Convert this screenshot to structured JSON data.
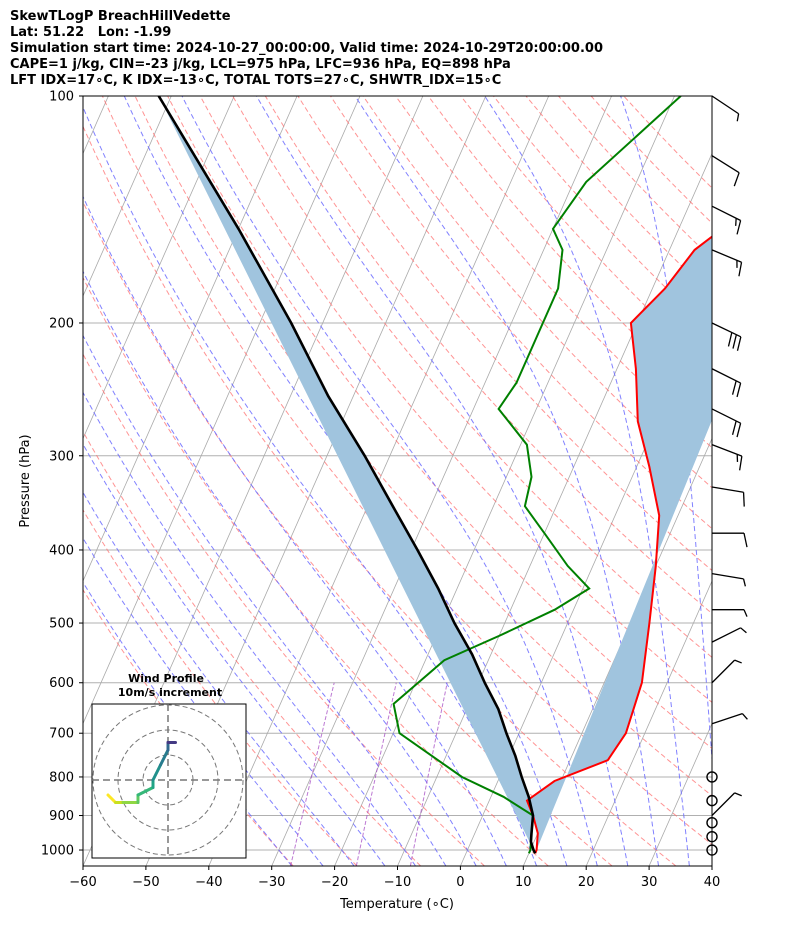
{
  "header": {
    "line1": "SkewTLogP BreachHillVedette",
    "line2": "Lat: 51.22   Lon: -1.99",
    "line3": "Simulation start time: 2024-10-27_00:00:00, Valid time: 2024-10-29T20:00:00.00",
    "line4": "CAPE=1 j/kg, CIN=-23 j/kg, LCL=975 hPa, LFC=936 hPa, EQ=898 hPa",
    "line5": "LFT IDX=17∘C, K IDX=-13∘C, TOTAL TOTS=27∘C, SHWTR_IDX=15∘C"
  },
  "chart_data": [
    {
      "type": "line",
      "subtype": "skew-t log-p",
      "xlabel": "Temperature (∘C)",
      "ylabel": "Pressure (hPa)",
      "xlim": [
        -60,
        40
      ],
      "ylim": [
        1050,
        100
      ],
      "yscale": "log",
      "x_ticks": [
        "−60",
        "−50",
        "−40",
        "−30",
        "−20",
        "−10",
        "0",
        "10",
        "20",
        "30",
        "40"
      ],
      "y_ticks": [
        "100",
        "200",
        "300",
        "400",
        "500",
        "600",
        "700",
        "800",
        "900",
        "1000"
      ],
      "grid": true,
      "colors": {
        "temperature": "#ff0000",
        "dewpoint": "#008000",
        "parcel": "#000000",
        "cape_fill": "#a0c4de",
        "dry_adiabat": "#ff7070",
        "moist_adiabat": "#6b6bff",
        "mixing_ratio": "#a040c0",
        "isotherm": "#aaaaaa"
      },
      "series": [
        {
          "role": "temperature",
          "points": [
            [
              100,
              7
            ],
            [
              120,
              1
            ],
            [
              140,
              0
            ],
            [
              160,
              -6
            ],
            [
              180,
              -8
            ],
            [
              200,
              -11
            ],
            [
              230,
              -7
            ],
            [
              270,
              -3
            ],
            [
              310,
              2
            ],
            [
              360,
              7
            ],
            [
              420,
              10
            ],
            [
              500,
              13
            ],
            [
              600,
              16
            ],
            [
              700,
              17
            ],
            [
              760,
              16
            ],
            [
              810,
              9
            ],
            [
              860,
              6
            ],
            [
              900,
              8
            ],
            [
              950,
              10
            ],
            [
              1000,
              11
            ],
            [
              1010,
              11
            ]
          ]
        },
        {
          "role": "dewpoint",
          "points": [
            [
              100,
              -19
            ],
            [
              130,
              -28
            ],
            [
              150,
              -30
            ],
            [
              160,
              -27
            ],
            [
              180,
              -25
            ],
            [
              210,
              -25
            ],
            [
              240,
              -25
            ],
            [
              260,
              -26
            ],
            [
              290,
              -19
            ],
            [
              320,
              -16
            ],
            [
              350,
              -15
            ],
            [
              380,
              -10
            ],
            [
              420,
              -4
            ],
            [
              450,
              1
            ],
            [
              480,
              -3
            ],
            [
              520,
              -10
            ],
            [
              560,
              -17
            ],
            [
              640,
              -22
            ],
            [
              700,
              -19
            ],
            [
              800,
              -6
            ],
            [
              850,
              2
            ],
            [
              900,
              8
            ],
            [
              950,
              9
            ],
            [
              1000,
              10
            ],
            [
              1010,
              10
            ]
          ]
        },
        {
          "role": "parcel",
          "points": [
            [
              1010,
              11
            ],
            [
              1000,
              10.5
            ],
            [
              975,
              9.5
            ],
            [
              950,
              9
            ],
            [
              900,
              8
            ],
            [
              850,
              6
            ],
            [
              800,
              3.5
            ],
            [
              750,
              1
            ],
            [
              700,
              -2
            ],
            [
              650,
              -5
            ],
            [
              600,
              -9
            ],
            [
              550,
              -13
            ],
            [
              500,
              -18
            ],
            [
              450,
              -23
            ],
            [
              400,
              -29
            ],
            [
              350,
              -36
            ],
            [
              300,
              -44
            ],
            [
              250,
              -54
            ],
            [
              200,
              -65
            ],
            [
              150,
              -80
            ],
            [
              100,
              -102
            ]
          ]
        }
      ],
      "wind_barbs": [
        {
          "p": 100,
          "u": -6,
          "v": 4
        },
        {
          "p": 120,
          "u": -8,
          "v": 5
        },
        {
          "p": 140,
          "u": -12,
          "v": 6
        },
        {
          "p": 160,
          "u": -12,
          "v": 5
        },
        {
          "p": 200,
          "u": -25,
          "v": 12
        },
        {
          "p": 230,
          "u": -20,
          "v": 10
        },
        {
          "p": 260,
          "u": -16,
          "v": 8
        },
        {
          "p": 290,
          "u": -13,
          "v": 5
        },
        {
          "p": 330,
          "u": -12,
          "v": 2
        },
        {
          "p": 380,
          "u": -8,
          "v": 0
        },
        {
          "p": 430,
          "u": -6,
          "v": 1
        },
        {
          "p": 480,
          "u": -5,
          "v": 0
        },
        {
          "p": 530,
          "u": -4,
          "v": -2
        },
        {
          "p": 600,
          "u": -3,
          "v": -3
        },
        {
          "p": 680,
          "u": -3,
          "v": -1
        },
        {
          "p": 800,
          "calm": true
        },
        {
          "p": 860,
          "calm": true
        },
        {
          "p": 920,
          "calm": true
        },
        {
          "p": 960,
          "calm": true
        },
        {
          "p": 1000,
          "calm": true
        },
        {
          "p": 900,
          "u": -3,
          "v": -3
        }
      ]
    },
    {
      "type": "hodograph",
      "title": "Wind Profile",
      "subtitle": "10m/s increment",
      "ring_step": 10,
      "points": [
        [
          -8,
          -2
        ],
        [
          -7,
          -3
        ],
        [
          -6,
          -3
        ],
        [
          -4,
          -3
        ],
        [
          -4,
          -2
        ],
        [
          -2,
          -1
        ],
        [
          -2,
          0
        ],
        [
          -1,
          2
        ],
        [
          0,
          4
        ],
        [
          0,
          5
        ],
        [
          0,
          5
        ],
        [
          1,
          5
        ]
      ],
      "colormap": "viridis"
    }
  ]
}
